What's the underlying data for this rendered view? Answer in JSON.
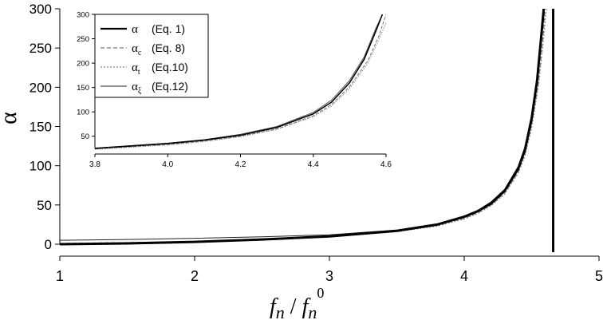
{
  "chart_data": [
    {
      "type": "line",
      "xlabel": "fn / fn0",
      "xlabel_parts": {
        "a": "f",
        "a_sub": "n",
        "slash": "/",
        "b": "f",
        "b_sub": "n",
        "b_sup": "0"
      },
      "ylabel": "α",
      "xlim": [
        1,
        5
      ],
      "ylim": [
        0,
        300
      ],
      "xticks": [
        1,
        2,
        3,
        4,
        5
      ],
      "yticks": [
        0,
        50,
        100,
        150,
        200,
        250,
        300
      ],
      "grid": false,
      "vertical_line_x": 4.66,
      "series": [
        {
          "name": "α (Eq. 1)",
          "style": "solid-thick",
          "x": [
            1.0,
            1.5,
            2.0,
            2.5,
            3.0,
            3.5,
            3.8,
            4.0,
            4.1,
            4.2,
            4.3,
            4.4,
            4.45,
            4.5,
            4.54,
            4.57,
            4.59
          ],
          "y": [
            0,
            1,
            3,
            6,
            10,
            17,
            25,
            35,
            42,
            52,
            68,
            96,
            120,
            160,
            208,
            262,
            300
          ]
        },
        {
          "name": "αc (Eq. 8)",
          "style": "dashed",
          "x": [
            1.0,
            1.5,
            2.0,
            2.5,
            3.0,
            3.5,
            3.8,
            4.0,
            4.1,
            4.2,
            4.3,
            4.4,
            4.45,
            4.5,
            4.55,
            4.58,
            4.6
          ],
          "y": [
            1,
            2,
            3.5,
            6.5,
            10,
            16,
            24,
            33,
            40,
            50,
            65,
            92,
            115,
            152,
            205,
            255,
            300
          ]
        },
        {
          "name": "αt (Eq.10)",
          "style": "dotted",
          "x": [
            1.0,
            1.5,
            2.0,
            2.5,
            3.0,
            3.5,
            3.8,
            4.0,
            4.1,
            4.2,
            4.3,
            4.4,
            4.45,
            4.5,
            4.55,
            4.58,
            4.61
          ],
          "y": [
            0.5,
            1.5,
            3,
            6,
            10,
            16,
            23,
            32,
            39,
            49,
            64,
            90,
            112,
            148,
            200,
            248,
            300
          ]
        },
        {
          "name": "αξ (Eq.12)",
          "style": "solid-thin",
          "x": [
            1.0,
            1.5,
            2.0,
            2.5,
            3.0,
            3.5,
            3.8,
            4.0,
            4.1,
            4.2,
            4.3,
            4.4,
            4.45,
            4.5,
            4.54,
            4.57,
            4.59
          ],
          "y": [
            5,
            6,
            7.5,
            9.5,
            12,
            18,
            26,
            36,
            43,
            54,
            70,
            99,
            124,
            165,
            213,
            268,
            300
          ]
        }
      ]
    },
    {
      "type": "line",
      "role": "inset",
      "xlim": [
        3.8,
        4.6
      ],
      "ylim": [
        25,
        300
      ],
      "xticks": [
        3.8,
        4.0,
        4.2,
        4.4,
        4.6
      ],
      "xtick_labels": [
        "3.8",
        "4.0",
        "4.2",
        "4.4",
        "4.6"
      ],
      "yticks": [
        50,
        100,
        150,
        200,
        250,
        300
      ],
      "grid": false,
      "legend_position": "top-left"
    }
  ],
  "legend": [
    {
      "symbol": "α",
      "sub": "",
      "eq": "(Eq. 1)"
    },
    {
      "symbol": "α",
      "sub": "c",
      "eq": "(Eq. 8)"
    },
    {
      "symbol": "α",
      "sub": "t",
      "eq": "(Eq.10)"
    },
    {
      "symbol": "α",
      "sub": "ξ",
      "eq": "(Eq.12)"
    }
  ]
}
